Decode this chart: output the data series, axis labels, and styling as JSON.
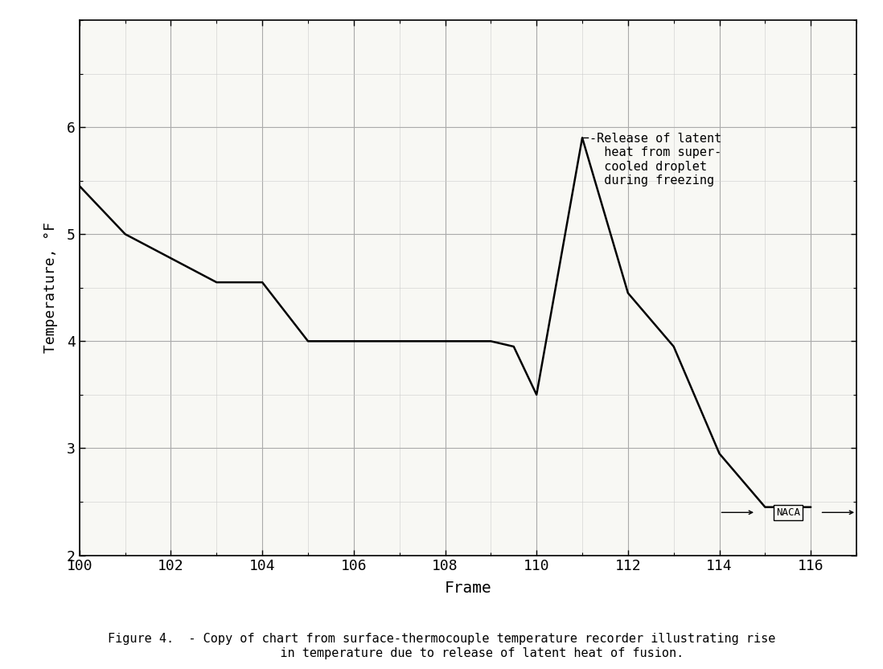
{
  "x_data": [
    100,
    101,
    103,
    104,
    105,
    109,
    109.5,
    110,
    111,
    112,
    113,
    114,
    115,
    116
  ],
  "y_data": [
    5.45,
    5.0,
    4.55,
    4.55,
    4.0,
    4.0,
    3.95,
    3.5,
    5.9,
    4.45,
    3.95,
    2.95,
    2.45,
    2.45
  ],
  "xlim": [
    100,
    117
  ],
  "ylim": [
    2,
    7
  ],
  "xticks": [
    100,
    102,
    104,
    106,
    108,
    110,
    112,
    114,
    116
  ],
  "yticks": [
    2,
    3,
    4,
    5,
    6
  ],
  "minor_xticks_step": 1,
  "minor_yticks_step": 0.5,
  "xlabel": "Frame",
  "ylabel": "Temperature, °F",
  "annotation_text": "-Release of latent\n  heat from super-\n  cooled droplet\n  during freezing",
  "peak_x": 111,
  "peak_y": 5.9,
  "caption": "Figure 4.  - Copy of chart from surface-thermocouple temperature recorder illustrating rise\n           in temperature due to release of latent heat of fusion.",
  "background_color": "#ffffff",
  "plot_bg_color": "#f8f8f4",
  "line_color": "#000000",
  "grid_major_color": "#aaaaaa",
  "grid_minor_color": "#cccccc",
  "naca_x": 115.5,
  "naca_y": 2.4
}
